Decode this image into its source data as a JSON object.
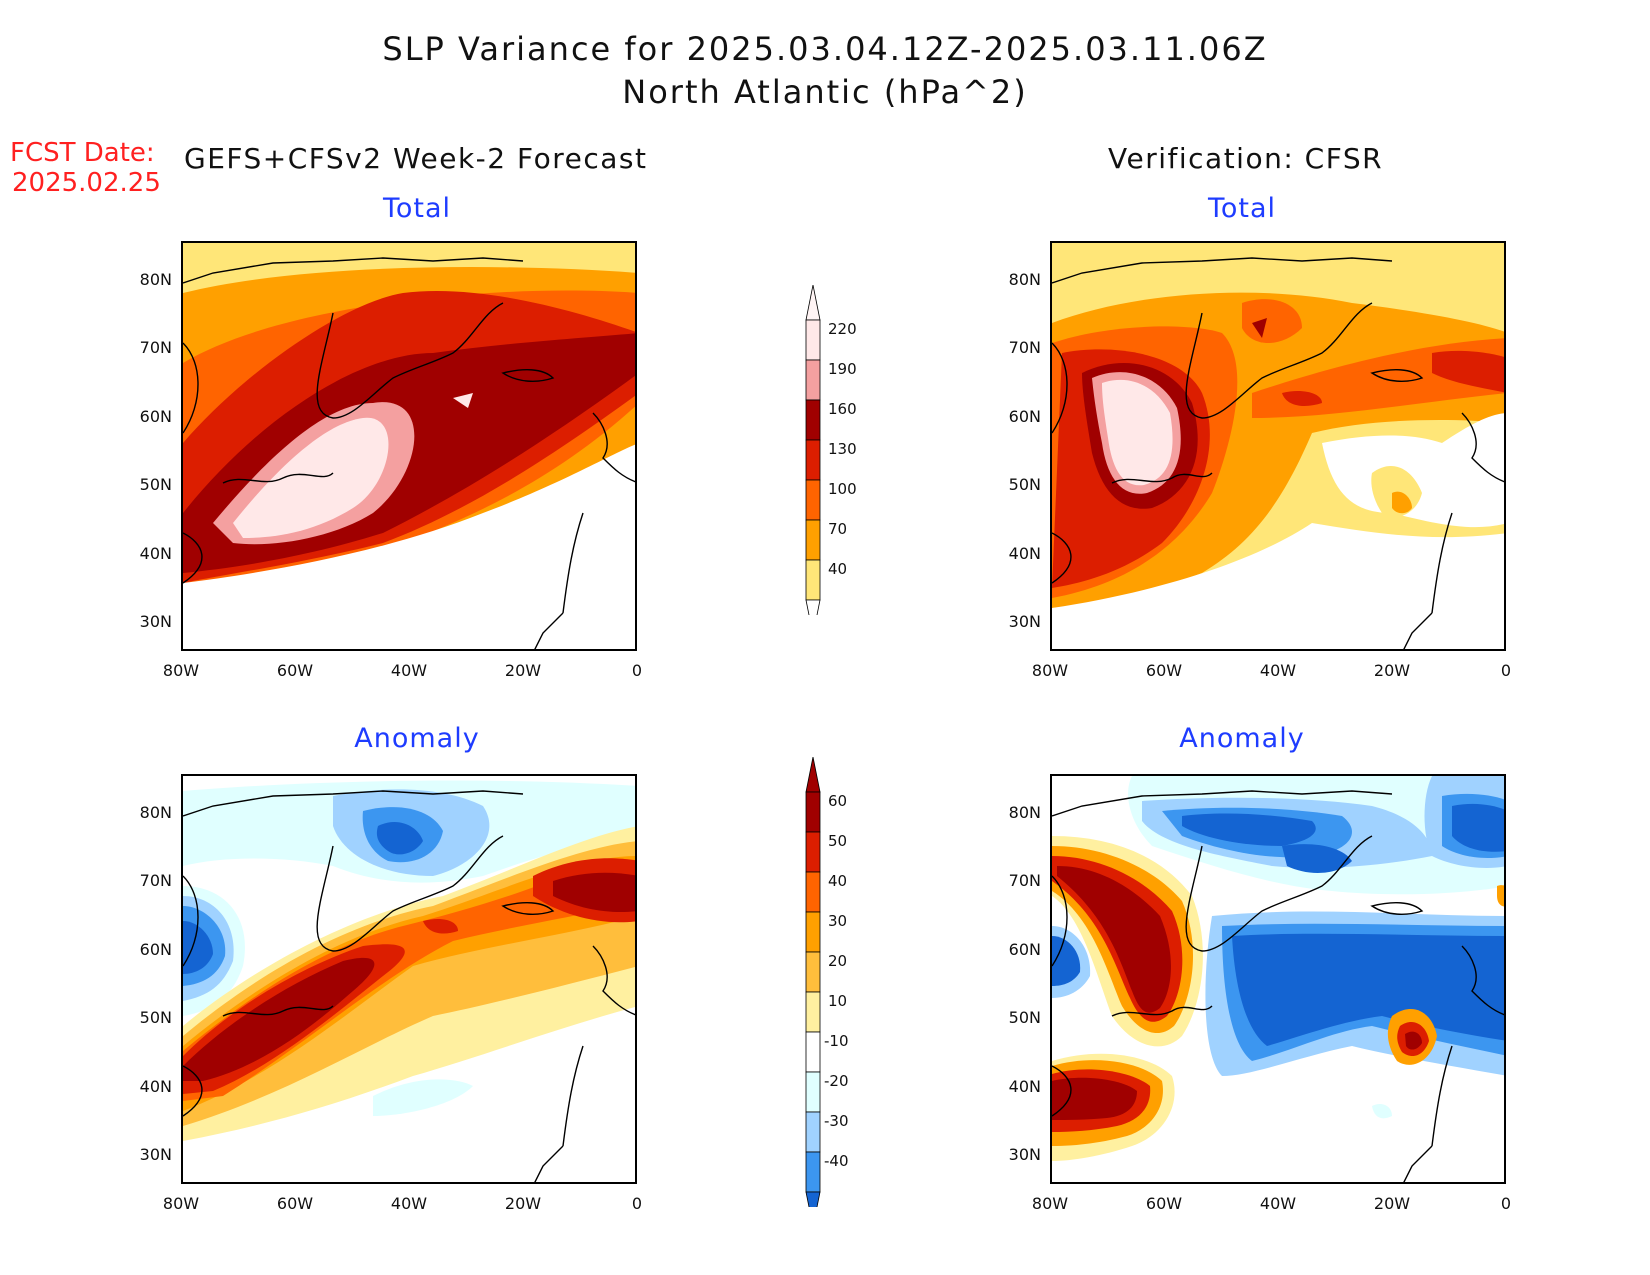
{
  "header": {
    "title_line1": "SLP Variance for 2025.03.04.12Z-2025.03.11.06Z",
    "title_line2": "North Atlantic (hPa^2)",
    "fcst_date_label": "FCST Date:",
    "fcst_date_value": "2025.02.25",
    "left_heading": "GEFS+CFSv2 Week-2 Forecast",
    "right_heading": "Verification: CFSR"
  },
  "panels": {
    "forecast_total": {
      "title": "Total"
    },
    "verification_total": {
      "title": "Total"
    },
    "forecast_anomaly": {
      "title": "Anomaly"
    },
    "verification_anomaly": {
      "title": "Anomaly"
    }
  },
  "axes": {
    "lat_labels": [
      "80N",
      "70N",
      "60N",
      "50N",
      "40N",
      "30N"
    ],
    "lon_labels": [
      "80W",
      "60W",
      "40W",
      "20W",
      "0"
    ]
  },
  "colorbar_total": {
    "labels": [
      "220",
      "190",
      "160",
      "130",
      "100",
      "70",
      "40"
    ],
    "colors": [
      "#ffe8e8",
      "#f4a0a0",
      "#a00000",
      "#dc1e00",
      "#ff6400",
      "#ffa000",
      "#ffe678"
    ]
  },
  "colorbar_anomaly": {
    "labels": [
      "60",
      "50",
      "40",
      "30",
      "20",
      "10",
      "-10",
      "-20",
      "-30",
      "-40"
    ],
    "colors": [
      "#a00000",
      "#dc1e00",
      "#ff6400",
      "#ffa000",
      "#ffbe3c",
      "#fff0a0",
      "#ffffff",
      "#e0ffff",
      "#a0d2ff",
      "#3c96f0",
      "#1464d2"
    ]
  }
}
